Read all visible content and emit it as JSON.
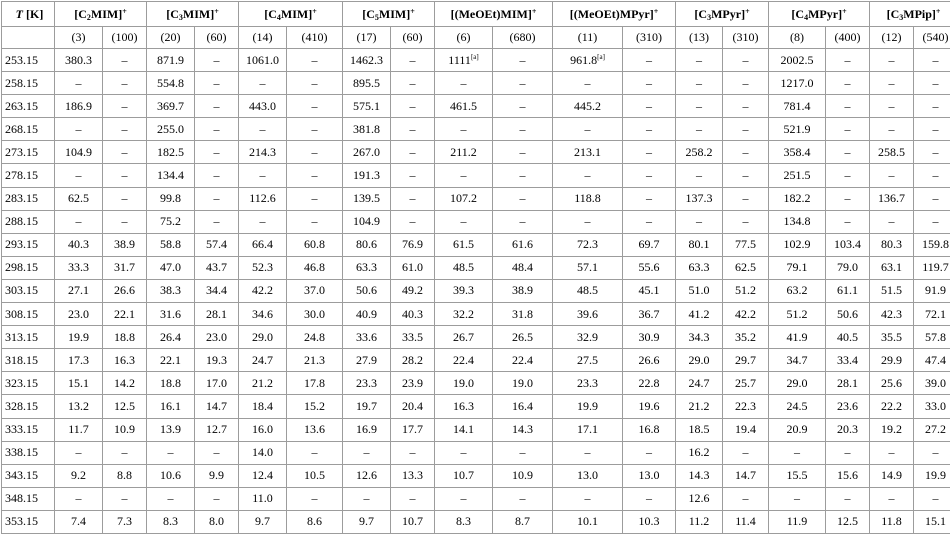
{
  "header": {
    "t_label": "T [K]",
    "groups": [
      {
        "pre": "[C",
        "sub": "2",
        "post": "MIM]",
        "sup": "+"
      },
      {
        "pre": "[C",
        "sub": "3",
        "post": "MIM]",
        "sup": "+"
      },
      {
        "pre": "[C",
        "sub": "4",
        "post": "MIM]",
        "sup": "+"
      },
      {
        "pre": "[C",
        "sub": "5",
        "post": "MIM]",
        "sup": "+"
      },
      {
        "pre": "[(MeOEt)MIM]",
        "sub": "",
        "post": "",
        "sup": "+"
      },
      {
        "pre": "[(MeOEt)MPyr]",
        "sub": "",
        "post": "",
        "sup": "+"
      },
      {
        "pre": "[C",
        "sub": "3",
        "post": "MPyr]",
        "sup": "+"
      },
      {
        "pre": "[C",
        "sub": "4",
        "post": "MPyr]",
        "sup": "+"
      },
      {
        "pre": "[C",
        "sub": "3",
        "post": "MPip]",
        "sup": "+"
      }
    ],
    "indices": [
      "(3)",
      "(100)",
      "(20)",
      "(60)",
      "(14)",
      "(410)",
      "(17)",
      "(60)",
      "(6)",
      "(680)",
      "(11)",
      "(310)",
      "(13)",
      "(310)",
      "(8)",
      "(400)",
      "(12)",
      "(540)"
    ]
  },
  "footnote_mark": "[a]",
  "rows": [
    {
      "t": "253.15",
      "v": [
        "380.3",
        "–",
        "871.9",
        "–",
        "1061.0",
        "–",
        "1462.3",
        "–",
        "1111",
        "–",
        "961.8",
        "–",
        "–",
        "–",
        "2002.5",
        "–",
        "–",
        "–"
      ],
      "notes": {
        "8": "[a]",
        "10": "[a]"
      }
    },
    {
      "t": "258.15",
      "v": [
        "–",
        "–",
        "554.8",
        "–",
        "–",
        "–",
        "895.5",
        "–",
        "–",
        "–",
        "–",
        "–",
        "–",
        "–",
        "1217.0",
        "–",
        "–",
        "–"
      ]
    },
    {
      "t": "263.15",
      "v": [
        "186.9",
        "–",
        "369.7",
        "–",
        "443.0",
        "–",
        "575.1",
        "–",
        "461.5",
        "–",
        "445.2",
        "–",
        "–",
        "–",
        "781.4",
        "–",
        "–",
        "–"
      ]
    },
    {
      "t": "268.15",
      "v": [
        "–",
        "–",
        "255.0",
        "–",
        "–",
        "–",
        "381.8",
        "–",
        "–",
        "–",
        "–",
        "–",
        "–",
        "–",
        "521.9",
        "–",
        "–",
        "–"
      ]
    },
    {
      "t": "273.15",
      "v": [
        "104.9",
        "–",
        "182.5",
        "–",
        "214.3",
        "–",
        "267.0",
        "–",
        "211.2",
        "–",
        "213.1",
        "–",
        "258.2",
        "–",
        "358.4",
        "–",
        "258.5",
        "–"
      ]
    },
    {
      "t": "278.15",
      "v": [
        "–",
        "–",
        "134.4",
        "–",
        "–",
        "–",
        "191.3",
        "–",
        "–",
        "–",
        "–",
        "–",
        "–",
        "–",
        "251.5",
        "–",
        "–",
        "–"
      ]
    },
    {
      "t": "283.15",
      "v": [
        "62.5",
        "–",
        "99.8",
        "–",
        "112.6",
        "–",
        "139.5",
        "–",
        "107.2",
        "–",
        "118.8",
        "–",
        "137.3",
        "–",
        "182.2",
        "–",
        "136.7",
        "–"
      ]
    },
    {
      "t": "288.15",
      "v": [
        "–",
        "–",
        "75.2",
        "–",
        "–",
        "–",
        "104.9",
        "–",
        "–",
        "–",
        "–",
        "–",
        "–",
        "–",
        "134.8",
        "–",
        "–",
        "–"
      ]
    },
    {
      "t": "293.15",
      "v": [
        "40.3",
        "38.9",
        "58.8",
        "57.4",
        "66.4",
        "60.8",
        "80.6",
        "76.9",
        "61.5",
        "61.6",
        "72.3",
        "69.7",
        "80.1",
        "77.5",
        "102.9",
        "103.4",
        "80.3",
        "159.8"
      ]
    },
    {
      "t": "298.15",
      "v": [
        "33.3",
        "31.7",
        "47.0",
        "43.7",
        "52.3",
        "46.8",
        "63.3",
        "61.0",
        "48.5",
        "48.4",
        "57.1",
        "55.6",
        "63.3",
        "62.5",
        "79.1",
        "79.0",
        "63.1",
        "119.7"
      ]
    },
    {
      "t": "303.15",
      "v": [
        "27.1",
        "26.6",
        "38.3",
        "34.4",
        "42.2",
        "37.0",
        "50.6",
        "49.2",
        "39.3",
        "38.9",
        "48.5",
        "45.1",
        "51.0",
        "51.2",
        "63.2",
        "61.1",
        "51.5",
        "91.9"
      ]
    },
    {
      "t": "308.15",
      "v": [
        "23.0",
        "22.1",
        "31.6",
        "28.1",
        "34.6",
        "30.0",
        "40.9",
        "40.3",
        "32.2",
        "31.8",
        "39.6",
        "36.7",
        "41.2",
        "42.2",
        "51.2",
        "50.6",
        "42.3",
        "72.1"
      ]
    },
    {
      "t": "313.15",
      "v": [
        "19.9",
        "18.8",
        "26.4",
        "23.0",
        "29.0",
        "24.8",
        "33.6",
        "33.5",
        "26.7",
        "26.5",
        "32.9",
        "30.9",
        "34.3",
        "35.2",
        "41.9",
        "40.5",
        "35.5",
        "57.8"
      ]
    },
    {
      "t": "318.15",
      "v": [
        "17.3",
        "16.3",
        "22.1",
        "19.3",
        "24.7",
        "21.3",
        "27.9",
        "28.2",
        "22.4",
        "22.4",
        "27.5",
        "26.6",
        "29.0",
        "29.7",
        "34.7",
        "33.4",
        "29.9",
        "47.4"
      ]
    },
    {
      "t": "323.15",
      "v": [
        "15.1",
        "14.2",
        "18.8",
        "17.0",
        "21.2",
        "17.8",
        "23.3",
        "23.9",
        "19.0",
        "19.0",
        "23.3",
        "22.8",
        "24.7",
        "25.7",
        "29.0",
        "28.1",
        "25.6",
        "39.0"
      ]
    },
    {
      "t": "328.15",
      "v": [
        "13.2",
        "12.5",
        "16.1",
        "14.7",
        "18.4",
        "15.2",
        "19.7",
        "20.4",
        "16.3",
        "16.4",
        "19.9",
        "19.6",
        "21.2",
        "22.3",
        "24.5",
        "23.6",
        "22.2",
        "33.0"
      ]
    },
    {
      "t": "333.15",
      "v": [
        "11.7",
        "10.9",
        "13.9",
        "12.7",
        "16.0",
        "13.6",
        "16.9",
        "17.7",
        "14.1",
        "14.3",
        "17.1",
        "16.8",
        "18.5",
        "19.4",
        "20.9",
        "20.3",
        "19.2",
        "27.2"
      ]
    },
    {
      "t": "338.15",
      "v": [
        "–",
        "–",
        "–",
        "–",
        "14.0",
        "–",
        "–",
        "–",
        "–",
        "–",
        "–",
        "–",
        "16.2",
        "–",
        "–",
        "–",
        "–",
        "–"
      ]
    },
    {
      "t": "343.15",
      "v": [
        "9.2",
        "8.8",
        "10.6",
        "9.9",
        "12.4",
        "10.5",
        "12.6",
        "13.3",
        "10.7",
        "10.9",
        "13.0",
        "13.0",
        "14.3",
        "14.7",
        "15.5",
        "15.6",
        "14.9",
        "19.9"
      ]
    },
    {
      "t": "348.15",
      "v": [
        "–",
        "–",
        "–",
        "–",
        "11.0",
        "–",
        "–",
        "–",
        "–",
        "–",
        "–",
        "–",
        "12.6",
        "–",
        "–",
        "–",
        "–",
        "–"
      ]
    },
    {
      "t": "353.15",
      "v": [
        "7.4",
        "7.3",
        "8.3",
        "8.0",
        "9.7",
        "8.6",
        "9.7",
        "10.7",
        "8.3",
        "8.7",
        "10.1",
        "10.3",
        "11.2",
        "11.4",
        "11.9",
        "12.5",
        "11.8",
        "15.1"
      ]
    }
  ]
}
